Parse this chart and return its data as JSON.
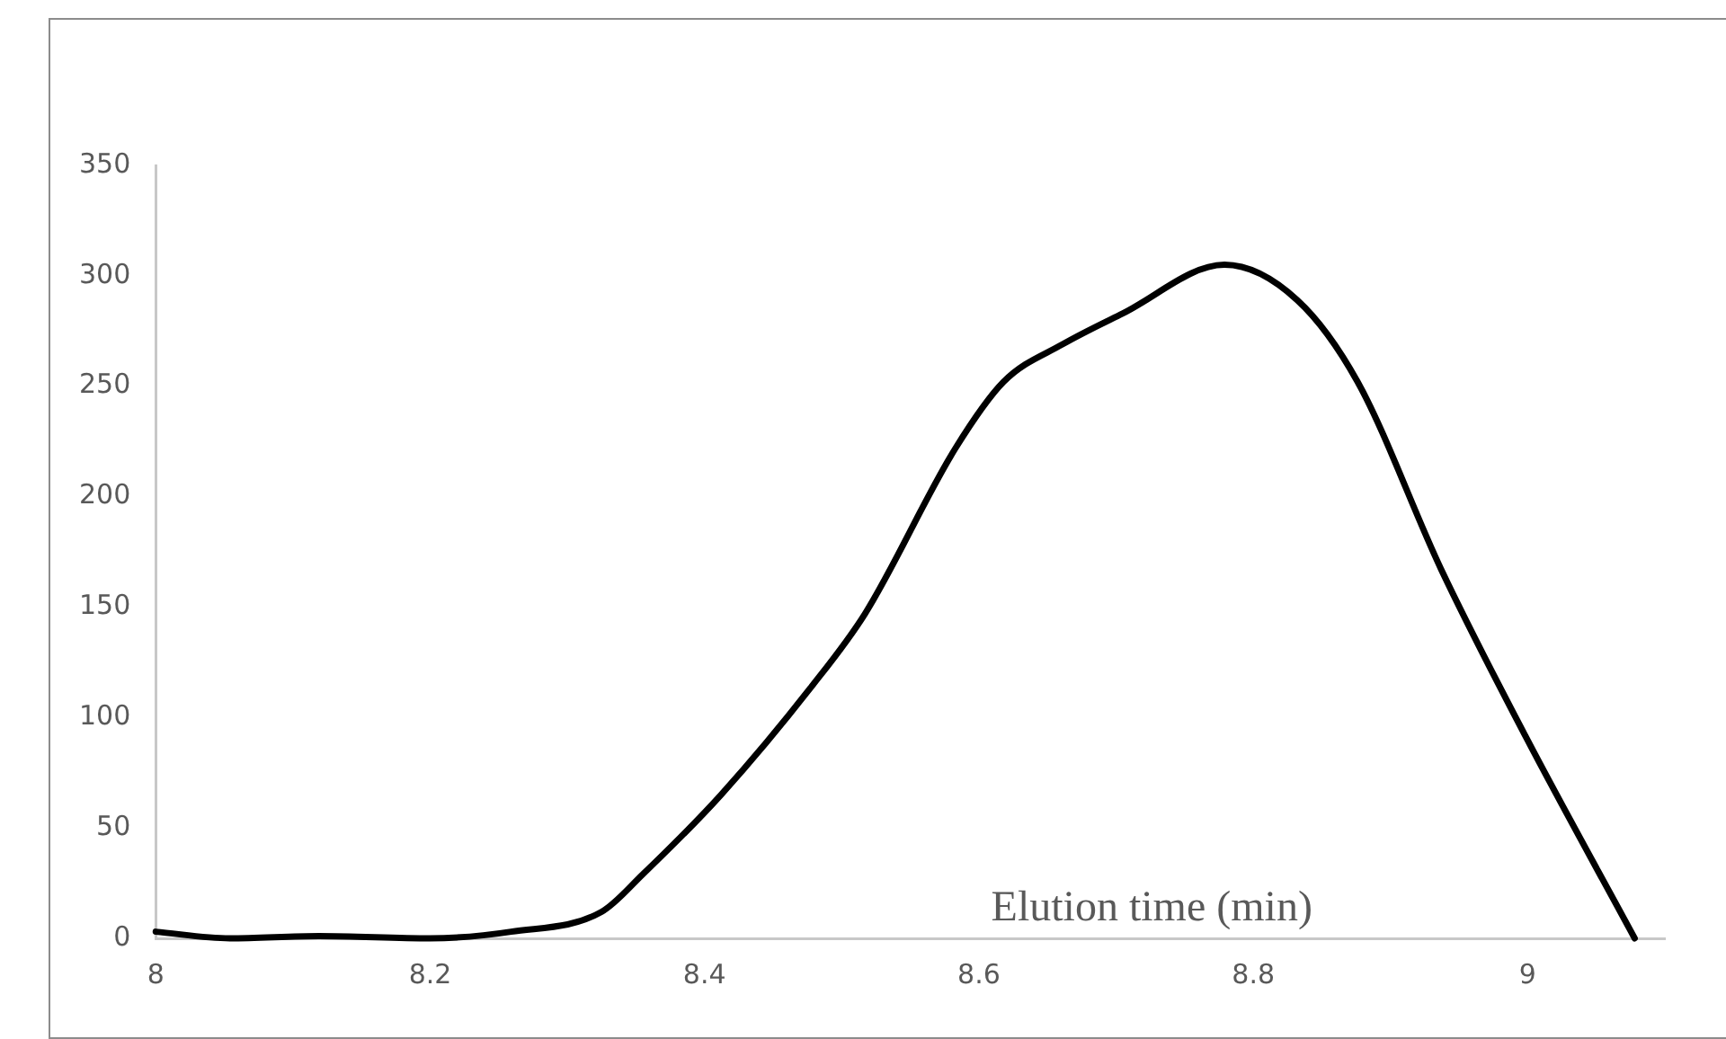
{
  "chart_data": {
    "type": "line",
    "xlabel": "Elution time (min)",
    "x": [
      8,
      8.054,
      8.119,
      8.2,
      8.259,
      8.325,
      8.355,
      8.412,
      8.478,
      8.517,
      8.583,
      8.618,
      8.661,
      8.705,
      8.779,
      8.832,
      8.876,
      8.937,
      8.998,
      9.078
    ],
    "series": [
      {
        "color": "#000000",
        "values": [
          3,
          0,
          1,
          0,
          3,
          12,
          29,
          65,
          114,
          147,
          222,
          252,
          269,
          283,
          305,
          289,
          252,
          167,
          92,
          0
        ]
      }
    ],
    "xlim": [
      8,
      9.1
    ],
    "xticks": [
      8,
      8.2,
      8.4,
      8.6,
      8.8,
      9
    ],
    "ylim": [
      0,
      350
    ],
    "yticks": [
      0,
      50,
      100,
      150,
      200,
      250,
      300,
      350
    ],
    "grid": false,
    "legend": false,
    "marker": "none",
    "line_style": "solid"
  }
}
